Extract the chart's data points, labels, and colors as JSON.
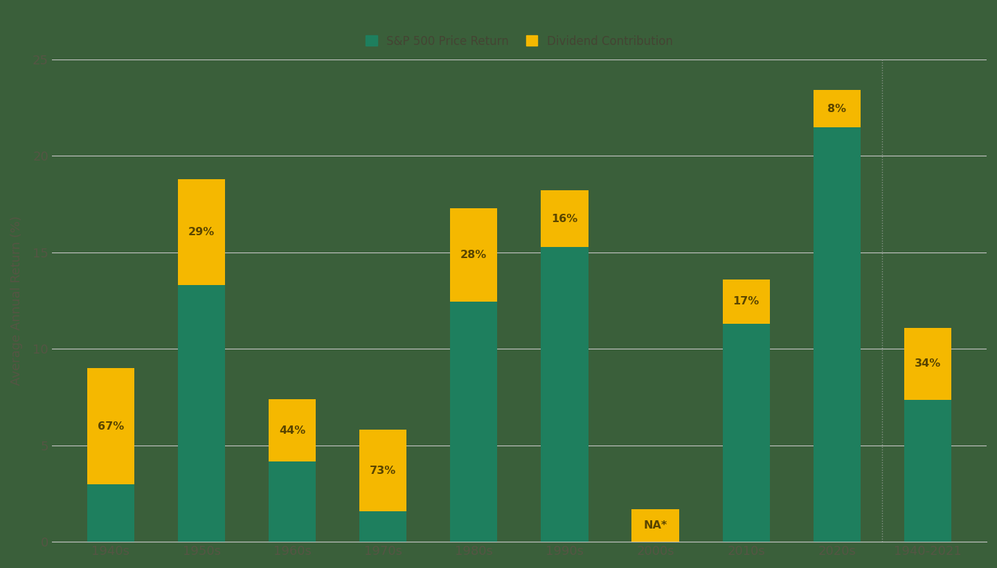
{
  "categories": [
    "1940s",
    "1950s",
    "1960s",
    "1970s",
    "1980s",
    "1990s",
    "2000s",
    "2010s",
    "2020s",
    "1940-2021"
  ],
  "price_return": [
    2.97,
    13.3,
    4.15,
    1.57,
    12.46,
    15.29,
    0.0,
    11.29,
    21.49,
    7.34
  ],
  "dividend_contribution": [
    6.03,
    5.5,
    3.25,
    4.23,
    4.84,
    2.91,
    1.7,
    2.31,
    1.91,
    3.76
  ],
  "dividend_pct_labels": [
    "67%",
    "29%",
    "44%",
    "73%",
    "28%",
    "16%",
    "NA*",
    "17%",
    "8%",
    "34%"
  ],
  "price_color": "#1e7f5e",
  "dividend_color": "#f5b800",
  "background_color": "#3a5f3a",
  "grid_color": "#c8c8c8",
  "axis_text_color": "#555544",
  "label_color": "#5a4500",
  "ylabel": "Average Annual Return (%)",
  "ylim": [
    0,
    25
  ],
  "yticks": [
    0,
    5,
    10,
    15,
    20,
    25
  ],
  "legend_labels": [
    "S&P 500 Price Return",
    "Dividend Contribution"
  ],
  "legend_colors": [
    "#1e7f5e",
    "#f5b800"
  ],
  "legend_text_color": "#444433",
  "sep_line_color": "#aaaaaa",
  "figsize": [
    14.4,
    8.21
  ],
  "dpi": 100
}
